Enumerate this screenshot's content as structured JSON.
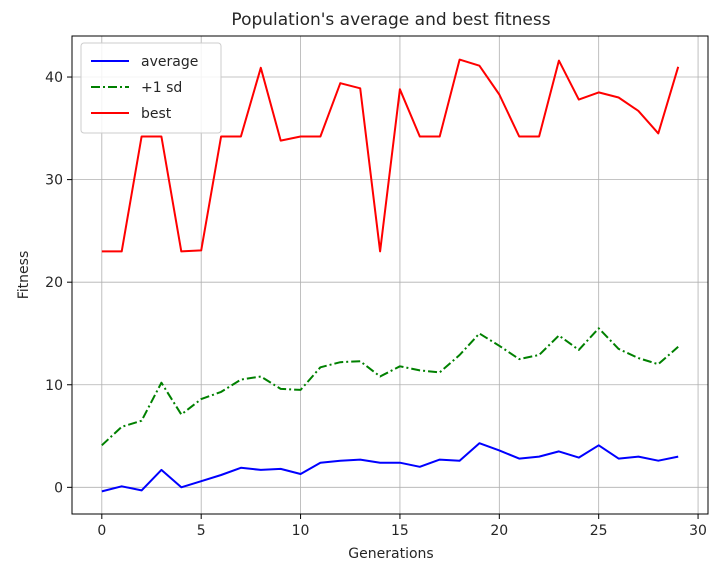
{
  "chart_data": {
    "type": "line",
    "title": "Population's average and best fitness",
    "xlabel": "Generations",
    "ylabel": "Fitness",
    "xlim": [
      -1.5,
      30.5
    ],
    "ylim": [
      -2.6,
      44
    ],
    "xticks": [
      0,
      5,
      10,
      15,
      20,
      25,
      30
    ],
    "yticks": [
      0,
      10,
      20,
      30,
      40
    ],
    "grid": true,
    "legend": "top-left",
    "x": [
      0,
      1,
      2,
      3,
      4,
      5,
      6,
      7,
      8,
      9,
      10,
      11,
      12,
      13,
      14,
      15,
      16,
      17,
      18,
      19,
      20,
      21,
      22,
      23,
      24,
      25,
      26,
      27,
      28,
      29
    ],
    "series": [
      {
        "name": "average",
        "color": "#0000ff",
        "style": "solid",
        "values": [
          -0.4,
          0.1,
          -0.3,
          1.7,
          0.0,
          0.6,
          1.2,
          1.9,
          1.7,
          1.8,
          1.3,
          2.4,
          2.6,
          2.7,
          2.4,
          2.4,
          2.0,
          2.7,
          2.6,
          4.3,
          3.6,
          2.8,
          3.0,
          3.5,
          2.9,
          4.1,
          2.8,
          3.0,
          2.6,
          3.0
        ]
      },
      {
        "name": "+1 sd",
        "color": "#008000",
        "style": "dashdot",
        "values": [
          4.1,
          5.9,
          6.5,
          10.2,
          7.1,
          8.6,
          9.3,
          10.5,
          10.8,
          9.6,
          9.5,
          11.7,
          12.2,
          12.3,
          10.8,
          11.8,
          11.4,
          11.2,
          12.9,
          15.0,
          13.8,
          12.5,
          12.9,
          14.8,
          13.4,
          15.5,
          13.5,
          12.6,
          12.0,
          13.7
        ]
      },
      {
        "name": "best",
        "color": "#ff0000",
        "style": "solid",
        "values": [
          23.0,
          23.0,
          34.2,
          34.2,
          23.0,
          23.1,
          34.2,
          34.2,
          40.9,
          33.8,
          34.2,
          34.2,
          39.4,
          38.9,
          23.0,
          38.8,
          34.2,
          34.2,
          41.7,
          41.1,
          38.3,
          34.2,
          34.2,
          41.6,
          37.8,
          38.5,
          38.0,
          36.7,
          34.5,
          41.0
        ]
      }
    ]
  }
}
